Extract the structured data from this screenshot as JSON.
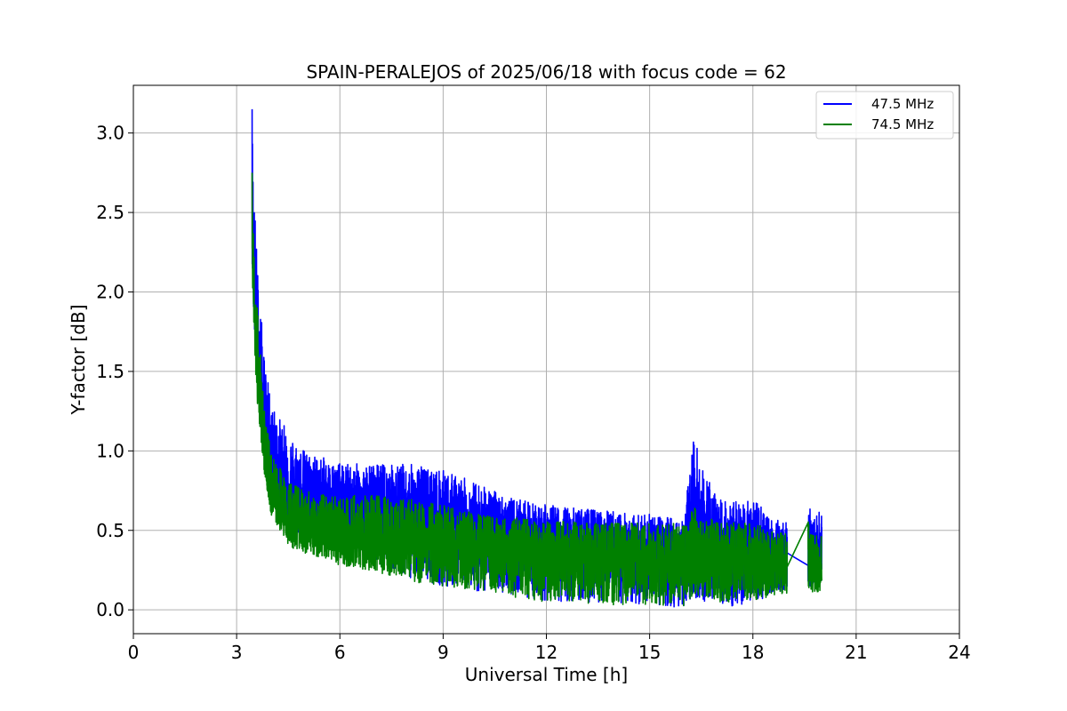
{
  "chart_data": {
    "type": "line",
    "title": "SPAIN-PERALEJOS of 2025/06/18 with focus code = 62",
    "xlabel": "Universal Time [h]",
    "ylabel": "Y-factor [dB]",
    "xlim": [
      0,
      24
    ],
    "ylim": [
      -0.15,
      3.3
    ],
    "xticks": [
      0,
      3,
      6,
      9,
      12,
      15,
      18,
      21,
      24
    ],
    "xtick_labels": [
      "0",
      "3",
      "6",
      "9",
      "12",
      "15",
      "18",
      "21",
      "24"
    ],
    "yticks": [
      0.0,
      0.5,
      1.0,
      1.5,
      2.0,
      2.5,
      3.0
    ],
    "ytick_labels": [
      "0.0",
      "0.5",
      "1.0",
      "1.5",
      "2.0",
      "2.5",
      "3.0"
    ],
    "grid": true,
    "legend_position": "top-right",
    "series": [
      {
        "name": "47.5 MHz",
        "color": "#0000ff",
        "x": [
          3.45,
          3.5,
          3.6,
          3.8,
          4.0,
          4.5,
          5.0,
          6.0,
          7.0,
          8.0,
          9.0,
          10.0,
          11.0,
          12.0,
          13.0,
          14.0,
          15.0,
          16.0,
          16.3,
          16.5,
          17.0,
          17.5,
          18.0,
          18.5,
          19.0,
          19.6,
          19.7,
          20.0
        ],
        "mean": [
          2.4,
          2.0,
          1.6,
          1.2,
          0.95,
          0.78,
          0.72,
          0.66,
          0.63,
          0.6,
          0.56,
          0.52,
          0.48,
          0.44,
          0.42,
          0.4,
          0.38,
          0.36,
          0.45,
          0.42,
          0.38,
          0.37,
          0.36,
          0.35,
          0.34,
          0.33,
          0.32,
          0.32
        ],
        "upper": [
          3.15,
          2.7,
          2.2,
          1.6,
          1.3,
          1.12,
          1.0,
          0.92,
          0.92,
          0.92,
          0.88,
          0.8,
          0.7,
          0.66,
          0.64,
          0.62,
          0.6,
          0.58,
          1.12,
          0.9,
          0.7,
          0.68,
          0.7,
          0.6,
          0.55,
          0.79,
          0.55,
          0.64
        ],
        "lower": [
          2.2,
          1.8,
          1.4,
          1.0,
          0.7,
          0.5,
          0.45,
          0.38,
          0.3,
          0.2,
          0.15,
          0.12,
          0.1,
          0.05,
          0.05,
          0.04,
          0.03,
          0.01,
          0.08,
          0.06,
          0.03,
          0.02,
          0.05,
          0.07,
          0.1,
          0.08,
          0.12,
          0.12
        ]
      },
      {
        "name": "74.5 MHz",
        "color": "#008000",
        "x": [
          3.45,
          3.5,
          3.6,
          3.8,
          4.0,
          4.5,
          5.0,
          6.0,
          7.0,
          8.0,
          9.0,
          10.0,
          11.0,
          12.0,
          13.0,
          14.0,
          15.0,
          16.0,
          16.3,
          16.5,
          17.0,
          17.5,
          18.0,
          18.5,
          19.0,
          19.6,
          19.7,
          20.0
        ],
        "mean": [
          2.3,
          1.9,
          1.5,
          1.0,
          0.72,
          0.55,
          0.5,
          0.46,
          0.44,
          0.42,
          0.4,
          0.38,
          0.36,
          0.34,
          0.33,
          0.32,
          0.31,
          0.3,
          0.34,
          0.33,
          0.3,
          0.3,
          0.29,
          0.28,
          0.28,
          0.27,
          0.26,
          0.26
        ],
        "upper": [
          2.75,
          2.4,
          1.9,
          1.3,
          1.0,
          0.82,
          0.75,
          0.72,
          0.72,
          0.7,
          0.66,
          0.6,
          0.58,
          0.56,
          0.56,
          0.55,
          0.55,
          0.54,
          0.66,
          0.6,
          0.55,
          0.55,
          0.55,
          0.5,
          0.48,
          0.6,
          0.5,
          0.5
        ],
        "lower": [
          2.1,
          1.7,
          1.3,
          0.85,
          0.6,
          0.4,
          0.35,
          0.28,
          0.24,
          0.18,
          0.15,
          0.12,
          0.08,
          0.05,
          0.04,
          0.03,
          0.03,
          0.02,
          0.1,
          0.08,
          0.05,
          0.05,
          0.06,
          0.08,
          0.1,
          0.06,
          0.1,
          0.08
        ]
      }
    ]
  }
}
